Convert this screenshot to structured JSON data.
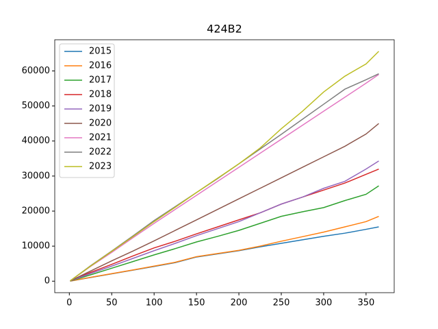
{
  "chart_data": {
    "type": "line",
    "title": "424B2",
    "x": [
      1,
      25,
      50,
      75,
      100,
      125,
      150,
      175,
      200,
      225,
      250,
      275,
      300,
      325,
      350,
      365
    ],
    "series": [
      {
        "name": "2015",
        "color": "#1f77b4",
        "values": [
          30,
          1050,
          2100,
          3150,
          4200,
          5300,
          6900,
          7800,
          8700,
          9800,
          10800,
          11800,
          12800,
          13700,
          14800,
          15500
        ]
      },
      {
        "name": "2016",
        "color": "#ff7f0e",
        "values": [
          30,
          1100,
          2150,
          3200,
          4300,
          5400,
          7000,
          7900,
          8800,
          10000,
          11400,
          12700,
          14000,
          15500,
          17000,
          18500
        ]
      },
      {
        "name": "2017",
        "color": "#2ca02c",
        "values": [
          50,
          1800,
          3700,
          5600,
          7500,
          9300,
          11200,
          12800,
          14500,
          16500,
          18500,
          19800,
          21000,
          23000,
          24800,
          27200
        ]
      },
      {
        "name": "2018",
        "color": "#d62728",
        "values": [
          50,
          2500,
          4800,
          7200,
          9500,
          11400,
          13500,
          15500,
          17500,
          19500,
          22000,
          24000,
          26000,
          28000,
          30500,
          32000
        ]
      },
      {
        "name": "2019",
        "color": "#9467bd",
        "values": [
          50,
          2200,
          4300,
          6500,
          8700,
          10800,
          13000,
          15000,
          17000,
          19500,
          22000,
          24000,
          26500,
          28500,
          32000,
          34300
        ]
      },
      {
        "name": "2020",
        "color": "#8c564b",
        "values": [
          50,
          2900,
          5800,
          8600,
          11500,
          14500,
          17500,
          20500,
          23500,
          26500,
          29500,
          32500,
          35500,
          38500,
          42000,
          45000
        ]
      },
      {
        "name": "2021",
        "color": "#e377c2",
        "values": [
          100,
          4200,
          8200,
          12400,
          16500,
          20500,
          24500,
          28500,
          32500,
          36500,
          40500,
          44500,
          48500,
          52500,
          56500,
          59000
        ]
      },
      {
        "name": "2022",
        "color": "#7f7f7f",
        "values": [
          100,
          4400,
          8600,
          12900,
          17300,
          21300,
          25300,
          29300,
          33500,
          37700,
          41900,
          46200,
          50500,
          54800,
          57500,
          59200
        ]
      },
      {
        "name": "2023",
        "color": "#bcbd22",
        "values": [
          100,
          4300,
          8500,
          12700,
          17000,
          21100,
          25300,
          29400,
          33500,
          38000,
          43500,
          48500,
          54000,
          58500,
          62000,
          65600
        ]
      }
    ],
    "xlim": [
      -17.2,
      383.2
    ],
    "xticks": [
      0,
      50,
      100,
      150,
      200,
      250,
      300,
      350
    ],
    "ylim": [
      -3280,
      68900
    ],
    "yticks": [
      0,
      10000,
      20000,
      30000,
      40000,
      50000,
      60000
    ],
    "legend": "upper left"
  }
}
